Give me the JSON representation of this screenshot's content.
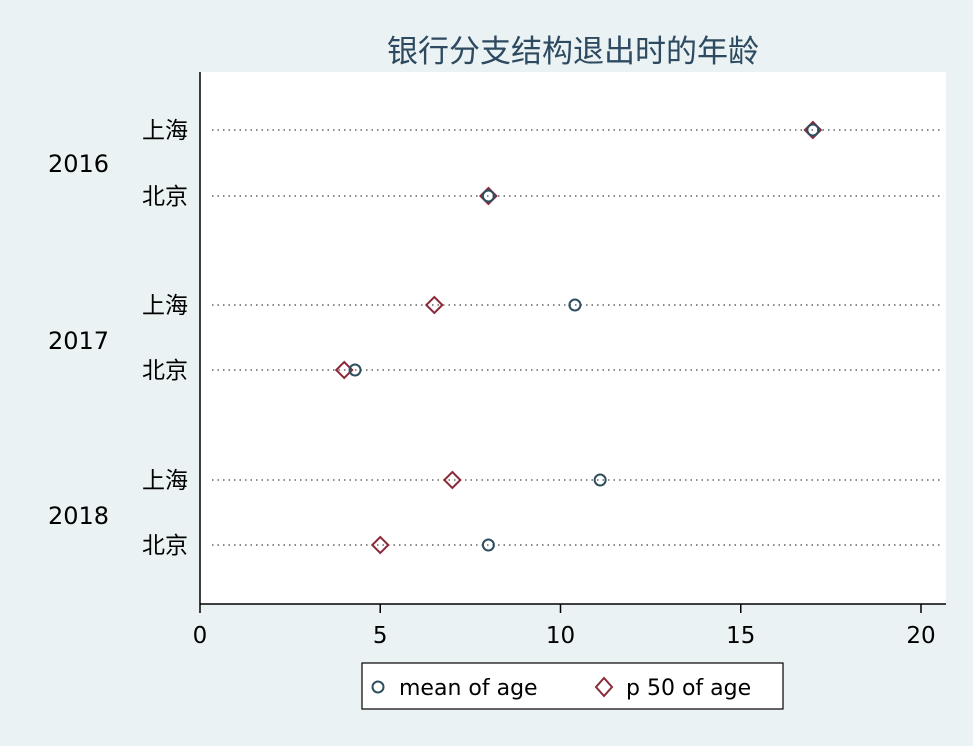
{
  "chart_data": {
    "type": "dot",
    "title": "银行分支结构退出时的年龄",
    "xlabel": "",
    "ylabel": "",
    "xlim": [
      0,
      20.7
    ],
    "xticks": [
      0,
      5,
      10,
      15,
      20
    ],
    "grid": false,
    "legend_position": "bottom",
    "groups": [
      {
        "label": "2016",
        "rows": [
          {
            "label": "上海",
            "mean": 17,
            "p50": 17
          },
          {
            "label": "北京",
            "mean": 8,
            "p50": 8
          }
        ]
      },
      {
        "label": "2017",
        "rows": [
          {
            "label": "上海",
            "mean": 10.4,
            "p50": 6.5
          },
          {
            "label": "北京",
            "mean": 4.3,
            "p50": 4
          }
        ]
      },
      {
        "label": "2018",
        "rows": [
          {
            "label": "上海",
            "mean": 11.1,
            "p50": 7
          },
          {
            "label": "北京",
            "mean": 8,
            "p50": 5
          }
        ]
      }
    ],
    "series": [
      {
        "key": "mean",
        "name": "mean of age",
        "marker": "circle",
        "color": "#2f4f5f"
      },
      {
        "key": "p50",
        "name": "p 50 of age",
        "marker": "diamond",
        "color": "#8b2a3a"
      }
    ],
    "colors": {
      "background": "#eaf2f3",
      "plot_background": "#ffffff",
      "text": "#000000",
      "title": "#2d4a60"
    }
  }
}
